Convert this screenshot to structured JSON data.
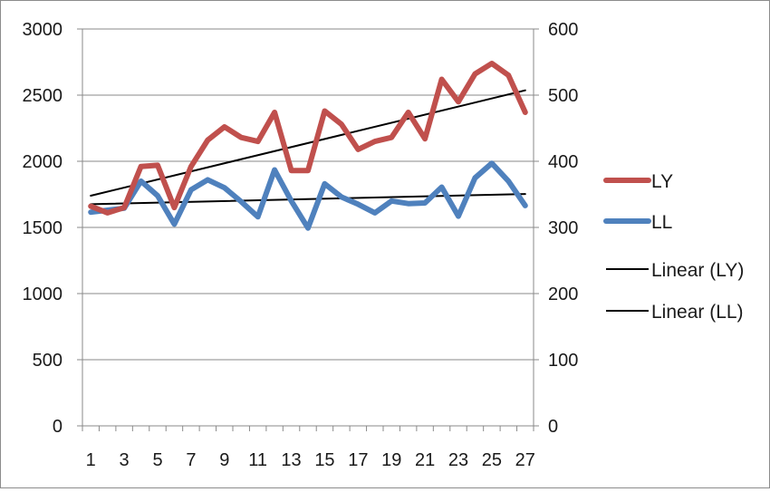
{
  "chart_data": {
    "type": "line",
    "title": "",
    "xlabel": "",
    "ylabel": "",
    "y2label": "",
    "x": [
      1,
      2,
      3,
      4,
      5,
      6,
      7,
      8,
      9,
      10,
      11,
      12,
      13,
      14,
      15,
      16,
      17,
      18,
      19,
      20,
      21,
      22,
      23,
      24,
      25,
      26,
      27
    ],
    "x_tick_labels": [
      "1",
      "3",
      "5",
      "7",
      "9",
      "11",
      "13",
      "15",
      "17",
      "19",
      "21",
      "23",
      "25",
      "27"
    ],
    "ylim": [
      0,
      3000
    ],
    "y_ticks": [
      "0",
      "500",
      "1000",
      "1500",
      "2000",
      "2500",
      "3000"
    ],
    "y2lim": [
      0,
      600
    ],
    "y2_ticks": [
      "0",
      "100",
      "200",
      "300",
      "400",
      "500",
      "600"
    ],
    "grid": "horizontal",
    "legend_position": "right",
    "series": [
      {
        "name": "LY",
        "axis": "left",
        "color": "#c0504d",
        "values": [
          1660,
          1610,
          1650,
          1960,
          1970,
          1650,
          1960,
          2160,
          2260,
          2180,
          2150,
          2370,
          1930,
          1930,
          2380,
          2280,
          2090,
          2150,
          2180,
          2370,
          2170,
          2620,
          2450,
          2660,
          2740,
          2650,
          2370
        ]
      },
      {
        "name": "LL",
        "axis": "right",
        "color": "#4f81bd",
        "values": [
          323,
          326,
          329,
          370,
          348,
          305,
          357,
          372,
          360,
          339,
          316,
          387,
          340,
          299,
          366,
          346,
          335,
          322,
          340,
          336,
          337,
          361,
          317,
          375,
          397,
          370,
          333
        ]
      },
      {
        "name": "Linear (LY)",
        "axis": "left",
        "color": "#000000",
        "trendline": true,
        "values": [
          1740,
          1770,
          1800,
          1831,
          1862,
          1892,
          1923,
          1954,
          1984,
          2015,
          2046,
          2076,
          2107,
          2138,
          2168,
          2199,
          2230,
          2260,
          2291,
          2322,
          2352,
          2383,
          2414,
          2444,
          2475,
          2506,
          2536
        ]
      },
      {
        "name": "Linear (LL)",
        "axis": "right",
        "color": "#000000",
        "trendline": true,
        "values": [
          335,
          335.6,
          336.2,
          336.8,
          337.4,
          338,
          338.6,
          339.2,
          339.8,
          340.4,
          341,
          341.6,
          342.2,
          342.8,
          343.4,
          344,
          344.6,
          345.2,
          345.8,
          346.4,
          347,
          347.6,
          348.2,
          348.8,
          349.4,
          350,
          350.6
        ]
      }
    ]
  }
}
